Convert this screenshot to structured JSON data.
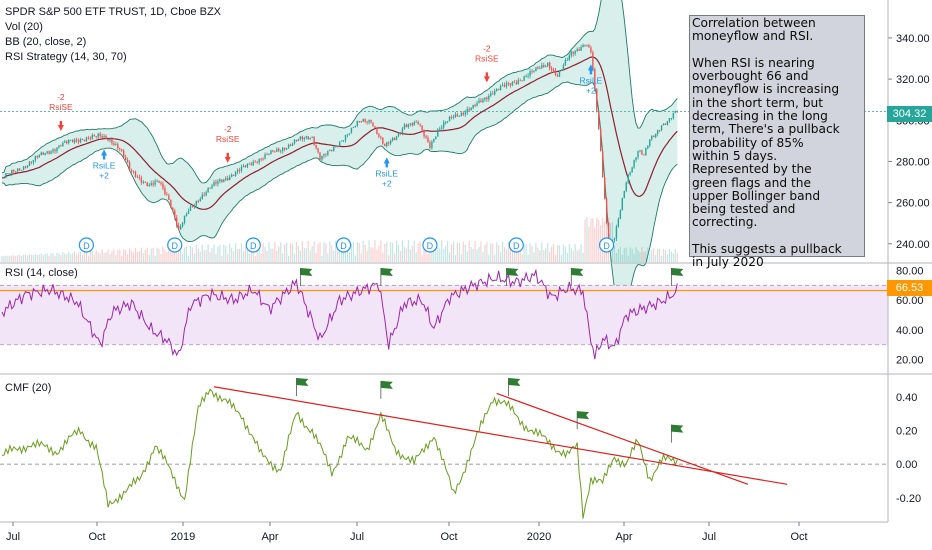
{
  "header": {
    "title": "SPDR S&P 500 ETF TRUST, 1D, Cboe BZX",
    "indicators": [
      "Vol (20)",
      "BB (20, close, 2)",
      "RSI Strategy (14, 30, 70)"
    ]
  },
  "note": {
    "text": "Correlation between\nmoneyflow and RSI.\n\nWhen RSI is nearing\noverbought 66 and\nmoneyflow is increasing\nin the short term, but\ndecreasing in the long\nterm, There's a pullback\nprobability of 85%\nwithin 5 days.\nRepresented by the\ngreen flags and the\nupper Bollinger band\nbeing tested and\ncorrecting.\n\nThis suggests a pullback\nin July 2020"
  },
  "rsi_pane": {
    "label": "RSI (14, close)",
    "last_value": "66.53"
  },
  "cmf_pane": {
    "label": "CMF (20)"
  },
  "price_pane": {
    "last_value": "304.32"
  },
  "colors": {
    "up": "#26a69a",
    "down": "#ef5350",
    "bb_fill": "#d5ede9",
    "bb_basis": "#8e1f2e",
    "rsi_line": "#9c27b0",
    "rsi_band": "#f3e5f8",
    "cmf_line": "#6a9d1e",
    "trendline": "#e02020",
    "flag": "#2e7d32",
    "signal_long": "#2196f3",
    "signal_short": "#f44336"
  },
  "chart_data": [
    {
      "type": "candlestick",
      "name": "price",
      "y_ticks": [
        240,
        260,
        280,
        300,
        320,
        340
      ],
      "ylim": [
        236,
        356
      ],
      "last_value": 304.32,
      "x_labels": [
        "Jul",
        "Oct",
        "2019",
        "Apr",
        "Jul",
        "Oct",
        "2020",
        "Apr",
        "Jul",
        "Oct"
      ],
      "close_path": [
        {
          "t": 0,
          "v": 272
        },
        {
          "t": 10,
          "v": 277
        },
        {
          "t": 20,
          "v": 283
        },
        {
          "t": 30,
          "v": 288
        },
        {
          "t": 40,
          "v": 291
        },
        {
          "t": 50,
          "v": 292
        },
        {
          "t": 55,
          "v": 291
        },
        {
          "t": 60,
          "v": 286
        },
        {
          "t": 65,
          "v": 276
        },
        {
          "t": 70,
          "v": 272
        },
        {
          "t": 75,
          "v": 268
        },
        {
          "t": 80,
          "v": 270
        },
        {
          "t": 85,
          "v": 262
        },
        {
          "t": 88,
          "v": 253
        },
        {
          "t": 90,
          "v": 246
        },
        {
          "t": 95,
          "v": 256
        },
        {
          "t": 100,
          "v": 262
        },
        {
          "t": 110,
          "v": 270
        },
        {
          "t": 120,
          "v": 275
        },
        {
          "t": 130,
          "v": 281
        },
        {
          "t": 140,
          "v": 285
        },
        {
          "t": 150,
          "v": 290
        },
        {
          "t": 158,
          "v": 292
        },
        {
          "t": 162,
          "v": 282
        },
        {
          "t": 168,
          "v": 285
        },
        {
          "t": 175,
          "v": 293
        },
        {
          "t": 182,
          "v": 299
        },
        {
          "t": 188,
          "v": 300
        },
        {
          "t": 195,
          "v": 287
        },
        {
          "t": 200,
          "v": 291
        },
        {
          "t": 205,
          "v": 298
        },
        {
          "t": 212,
          "v": 298
        },
        {
          "t": 218,
          "v": 288
        },
        {
          "t": 222,
          "v": 295
        },
        {
          "t": 230,
          "v": 302
        },
        {
          "t": 240,
          "v": 306
        },
        {
          "t": 250,
          "v": 314
        },
        {
          "t": 260,
          "v": 318
        },
        {
          "t": 270,
          "v": 323
        },
        {
          "t": 278,
          "v": 328
        },
        {
          "t": 283,
          "v": 321
        },
        {
          "t": 290,
          "v": 333
        },
        {
          "t": 297,
          "v": 337
        },
        {
          "t": 300,
          "v": 333
        },
        {
          "t": 303,
          "v": 305
        },
        {
          "t": 305,
          "v": 285
        },
        {
          "t": 307,
          "v": 262
        },
        {
          "t": 309,
          "v": 240
        },
        {
          "t": 312,
          "v": 243
        },
        {
          "t": 315,
          "v": 256
        },
        {
          "t": 318,
          "v": 270
        },
        {
          "t": 321,
          "v": 278
        },
        {
          "t": 324,
          "v": 286
        },
        {
          "t": 327,
          "v": 283
        },
        {
          "t": 330,
          "v": 290
        },
        {
          "t": 333,
          "v": 293
        },
        {
          "t": 336,
          "v": 298
        },
        {
          "t": 339,
          "v": 300
        },
        {
          "t": 342,
          "v": 303
        },
        {
          "t": 344,
          "v": 304.32
        }
      ],
      "signals": [
        {
          "t": 30,
          "text": "RsiSE",
          "qty": "-2",
          "side": "short"
        },
        {
          "t": 52,
          "text": "RsiLE",
          "qty": "+2",
          "side": "long"
        },
        {
          "t": 115,
          "text": "RsiSE",
          "qty": "-2",
          "side": "short"
        },
        {
          "t": 196,
          "text": "RsiLE",
          "qty": "+2",
          "side": "long"
        },
        {
          "t": 247,
          "text": "RsiSE",
          "qty": "-2",
          "side": "short"
        },
        {
          "t": 300,
          "text": "RsiLE",
          "qty": "+2",
          "side": "long"
        }
      ],
      "dividends": [
        {
          "t": 43,
          "text": "D"
        },
        {
          "t": 88,
          "text": "D"
        },
        {
          "t": 128,
          "text": "D"
        },
        {
          "t": 174,
          "text": "D"
        },
        {
          "t": 218,
          "text": "D"
        },
        {
          "t": 262,
          "text": "D"
        },
        {
          "t": 308,
          "text": "D"
        }
      ]
    },
    {
      "type": "line",
      "name": "RSI (14, close)",
      "y_ticks": [
        20,
        40,
        60,
        80
      ],
      "ylim": [
        13,
        83
      ],
      "bands": [
        30,
        70
      ],
      "level": 66.53,
      "last_value": 66.53,
      "path": [
        {
          "t": 0,
          "v": 52
        },
        {
          "t": 12,
          "v": 64
        },
        {
          "t": 25,
          "v": 67
        },
        {
          "t": 38,
          "v": 59
        },
        {
          "t": 50,
          "v": 30
        },
        {
          "t": 56,
          "v": 52
        },
        {
          "t": 66,
          "v": 58
        },
        {
          "t": 76,
          "v": 40
        },
        {
          "t": 84,
          "v": 33
        },
        {
          "t": 90,
          "v": 22
        },
        {
          "t": 96,
          "v": 57
        },
        {
          "t": 106,
          "v": 64
        },
        {
          "t": 118,
          "v": 60
        },
        {
          "t": 128,
          "v": 67
        },
        {
          "t": 136,
          "v": 54
        },
        {
          "t": 150,
          "v": 72
        },
        {
          "t": 162,
          "v": 33
        },
        {
          "t": 172,
          "v": 60
        },
        {
          "t": 182,
          "v": 66
        },
        {
          "t": 192,
          "v": 71
        },
        {
          "t": 197,
          "v": 30
        },
        {
          "t": 205,
          "v": 58
        },
        {
          "t": 214,
          "v": 60
        },
        {
          "t": 220,
          "v": 41
        },
        {
          "t": 228,
          "v": 62
        },
        {
          "t": 240,
          "v": 70
        },
        {
          "t": 252,
          "v": 75
        },
        {
          "t": 262,
          "v": 72
        },
        {
          "t": 272,
          "v": 77
        },
        {
          "t": 280,
          "v": 62
        },
        {
          "t": 288,
          "v": 68
        },
        {
          "t": 296,
          "v": 66
        },
        {
          "t": 299,
          "v": 40
        },
        {
          "t": 302,
          "v": 22
        },
        {
          "t": 306,
          "v": 34
        },
        {
          "t": 312,
          "v": 28
        },
        {
          "t": 318,
          "v": 50
        },
        {
          "t": 326,
          "v": 54
        },
        {
          "t": 334,
          "v": 58
        },
        {
          "t": 340,
          "v": 62
        },
        {
          "t": 344,
          "v": 66.53
        }
      ],
      "flags": [
        {
          "t": 152
        },
        {
          "t": 193
        },
        {
          "t": 257
        },
        {
          "t": 290
        },
        {
          "t": 341
        }
      ]
    },
    {
      "type": "line",
      "name": "CMF (20)",
      "y_ticks": [
        -0.2,
        0.0,
        0.2,
        0.4
      ],
      "ylim": [
        -0.32,
        0.5
      ],
      "zero_line": 0.0,
      "path": [
        {
          "t": 0,
          "v": 0.05
        },
        {
          "t": 14,
          "v": 0.12
        },
        {
          "t": 28,
          "v": 0.08
        },
        {
          "t": 40,
          "v": 0.2
        },
        {
          "t": 48,
          "v": 0.1
        },
        {
          "t": 54,
          "v": -0.25
        },
        {
          "t": 60,
          "v": -0.18
        },
        {
          "t": 70,
          "v": -0.1
        },
        {
          "t": 78,
          "v": 0.12
        },
        {
          "t": 86,
          "v": -0.05
        },
        {
          "t": 93,
          "v": -0.2
        },
        {
          "t": 100,
          "v": 0.32
        },
        {
          "t": 106,
          "v": 0.46
        },
        {
          "t": 112,
          "v": 0.38
        },
        {
          "t": 122,
          "v": 0.3
        },
        {
          "t": 132,
          "v": 0.05
        },
        {
          "t": 142,
          "v": -0.03
        },
        {
          "t": 150,
          "v": 0.3
        },
        {
          "t": 158,
          "v": 0.2
        },
        {
          "t": 168,
          "v": -0.05
        },
        {
          "t": 176,
          "v": 0.15
        },
        {
          "t": 186,
          "v": 0.1
        },
        {
          "t": 193,
          "v": 0.28
        },
        {
          "t": 200,
          "v": 0.1
        },
        {
          "t": 210,
          "v": 0.0
        },
        {
          "t": 220,
          "v": 0.18
        },
        {
          "t": 230,
          "v": -0.18
        },
        {
          "t": 240,
          "v": 0.1
        },
        {
          "t": 250,
          "v": 0.4
        },
        {
          "t": 256,
          "v": 0.36
        },
        {
          "t": 264,
          "v": 0.26
        },
        {
          "t": 272,
          "v": 0.18
        },
        {
          "t": 280,
          "v": 0.12
        },
        {
          "t": 288,
          "v": 0.05
        },
        {
          "t": 293,
          "v": 0.1
        },
        {
          "t": 296,
          "v": -0.3
        },
        {
          "t": 300,
          "v": -0.08
        },
        {
          "t": 306,
          "v": -0.12
        },
        {
          "t": 312,
          "v": 0.05
        },
        {
          "t": 318,
          "v": 0.0
        },
        {
          "t": 324,
          "v": 0.13
        },
        {
          "t": 330,
          "v": -0.08
        },
        {
          "t": 336,
          "v": 0.02
        },
        {
          "t": 344,
          "v": 0.02
        }
      ],
      "trendlines": [
        {
          "from": {
            "t": 108,
            "v": 0.46
          },
          "to": {
            "t": 400,
            "v": -0.12
          }
        },
        {
          "from": {
            "t": 252,
            "v": 0.42
          },
          "to": {
            "t": 380,
            "v": -0.12
          }
        }
      ],
      "flags": [
        {
          "t": 150
        },
        {
          "t": 193
        },
        {
          "t": 258
        },
        {
          "t": 293
        },
        {
          "t": 341
        }
      ]
    }
  ]
}
